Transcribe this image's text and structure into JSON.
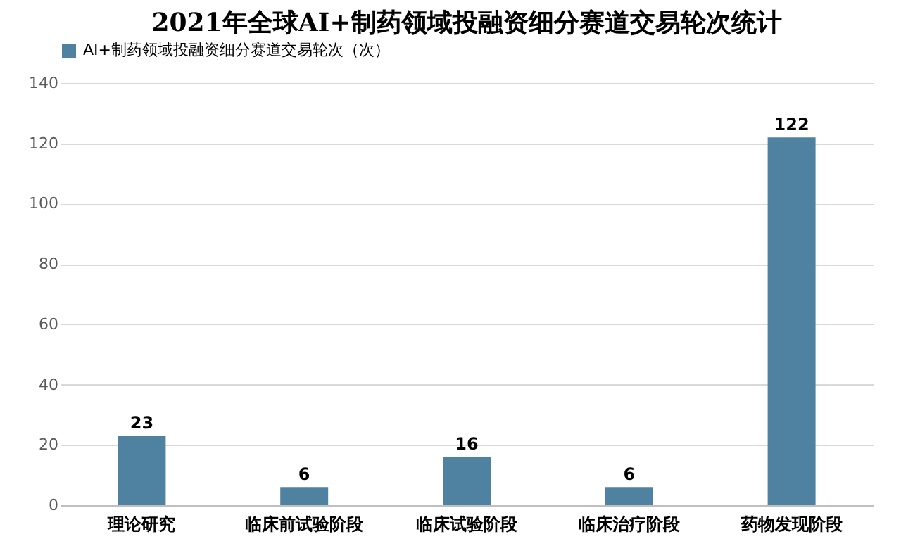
{
  "chart_data": {
    "type": "bar",
    "title": "2021年全球AI+制药领域投融资细分赛道交易轮次统计",
    "categories": [
      "理论研究",
      "临床前试验阶段",
      "临床试验阶段",
      "临床治疗阶段",
      "药物发现阶段"
    ],
    "series": [
      {
        "name": "AI+制药领域投融资细分赛道交易轮次（次）",
        "color": "#4f81a0",
        "values": [
          23,
          6,
          16,
          6,
          122
        ]
      }
    ],
    "ylim": [
      0,
      140
    ],
    "yticks": [
      0,
      20,
      40,
      60,
      80,
      100,
      120,
      140
    ],
    "grid": "y",
    "legend": "top",
    "data_labels": true
  }
}
